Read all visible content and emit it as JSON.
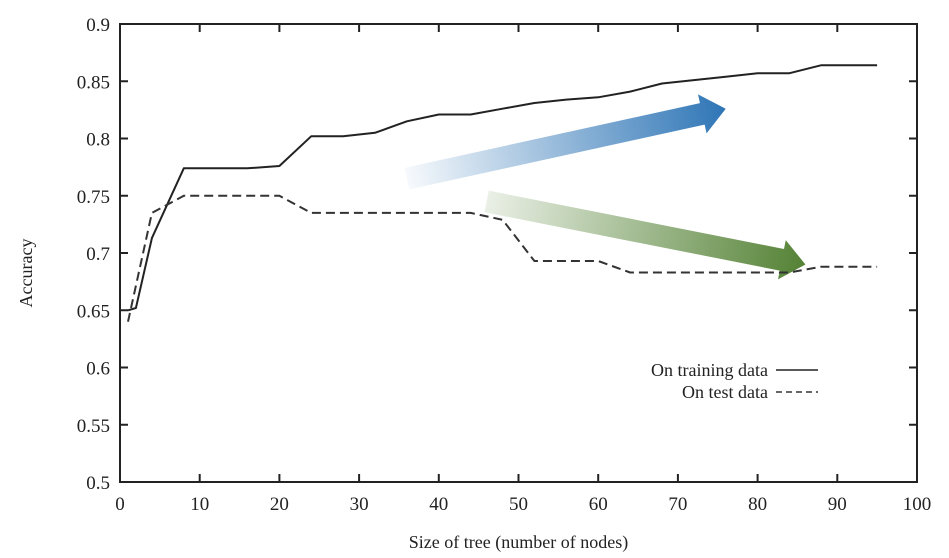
{
  "chart_data": {
    "type": "line",
    "title": "",
    "xlabel": "Size of tree (number of nodes)",
    "ylabel": "Accuracy",
    "xlim": [
      0,
      100
    ],
    "ylim": [
      0.5,
      0.9
    ],
    "xticks": [
      0,
      10,
      20,
      30,
      40,
      50,
      60,
      70,
      80,
      90,
      100
    ],
    "xtick_labels": [
      "0",
      "10",
      "20",
      "30",
      "40",
      "50",
      "60",
      "70",
      "80",
      "90",
      "100"
    ],
    "yticks": [
      0.5,
      0.55,
      0.6,
      0.65,
      0.7,
      0.75,
      0.8,
      0.85,
      0.9
    ],
    "ytick_labels": [
      "0.5",
      "0.55",
      "0.6",
      "0.65",
      "0.7",
      "0.75",
      "0.8",
      "0.85",
      "0.9"
    ],
    "grid": false,
    "legend_position": "bottom-right",
    "series": [
      {
        "name": "On training data",
        "style": "solid",
        "color": "#222222",
        "x": [
          1,
          2,
          4,
          8,
          12,
          16,
          20,
          24,
          28,
          32,
          36,
          40,
          44,
          48,
          52,
          56,
          60,
          64,
          68,
          72,
          76,
          80,
          84,
          88,
          95
        ],
        "y": [
          0.65,
          0.652,
          0.713,
          0.774,
          0.774,
          0.774,
          0.776,
          0.802,
          0.802,
          0.805,
          0.815,
          0.821,
          0.821,
          0.826,
          0.831,
          0.834,
          0.836,
          0.841,
          0.848,
          0.851,
          0.854,
          0.857,
          0.857,
          0.864,
          0.864
        ]
      },
      {
        "name": "On test data",
        "style": "dashed",
        "color": "#333333",
        "x": [
          1,
          4,
          8,
          12,
          16,
          20,
          24,
          28,
          32,
          36,
          40,
          44,
          48,
          52,
          56,
          60,
          64,
          68,
          72,
          76,
          80,
          84,
          88,
          95
        ],
        "y": [
          0.64,
          0.735,
          0.75,
          0.75,
          0.75,
          0.75,
          0.735,
          0.735,
          0.735,
          0.735,
          0.735,
          0.735,
          0.729,
          0.693,
          0.693,
          0.693,
          0.683,
          0.683,
          0.683,
          0.683,
          0.683,
          0.683,
          0.688,
          0.688
        ]
      }
    ],
    "annotations": [
      {
        "name": "increasing-trend-arrow",
        "type": "gradient-arrow",
        "color": "#2e75b6",
        "from": [
          36,
          0.765
        ],
        "to": [
          76,
          0.826
        ],
        "meaning": "training accuracy increases"
      },
      {
        "name": "decreasing-trend-arrow",
        "type": "gradient-arrow",
        "color": "#548235",
        "from": [
          46,
          0.745
        ],
        "to": [
          86,
          0.69
        ],
        "meaning": "test accuracy decreases"
      }
    ]
  }
}
